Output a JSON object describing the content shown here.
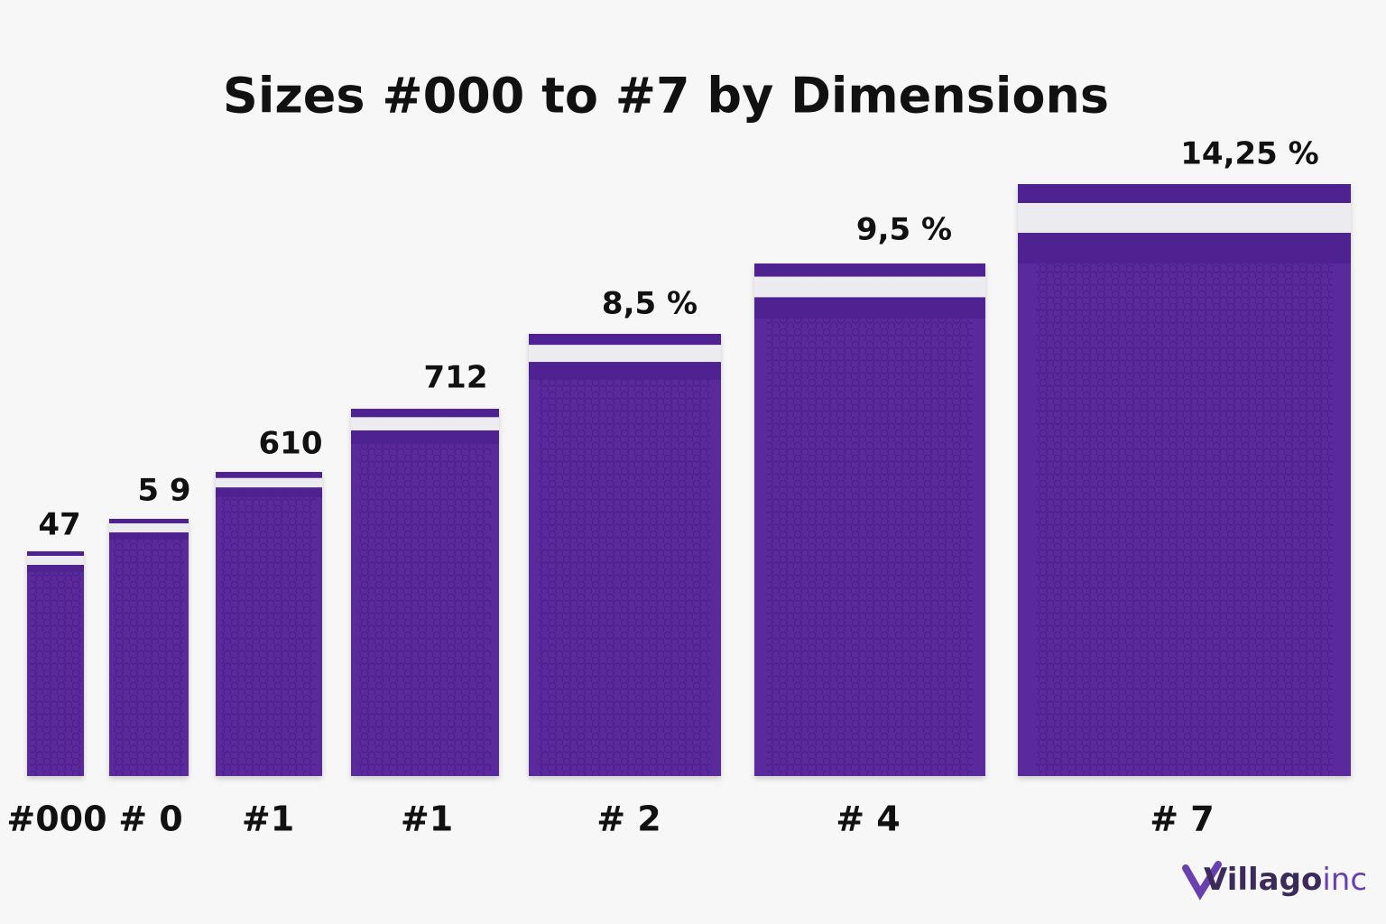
{
  "title": "Sizes #000 to #7 by Dimensions",
  "items": [
    {
      "label": "#000",
      "size_label": "47"
    },
    {
      "label": "# 0",
      "size_label": "5 9"
    },
    {
      "label": "#1",
      "size_label": "610"
    },
    {
      "label": "#1",
      "size_label": "712"
    },
    {
      "label": "# 2",
      "size_label": "8,5 %"
    },
    {
      "label": "# 4",
      "size_label": "9,5 %"
    },
    {
      "label": "# 7",
      "size_label": "14,25 %"
    }
  ],
  "logo": {
    "brand": "Villago",
    "suffix": "inc"
  }
}
